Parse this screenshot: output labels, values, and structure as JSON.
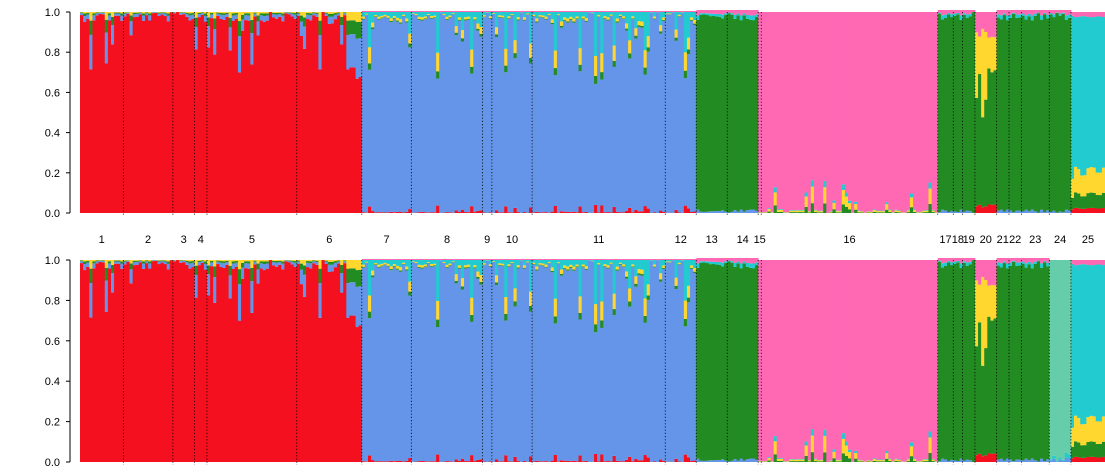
{
  "colors": {
    "red": "#f51020",
    "blue": "#6495e8",
    "pink": "#ff69b4",
    "green": "#228b22",
    "yellow": "#ffd72e",
    "cyan": "#22cbd0",
    "teal": "#66cdaa"
  },
  "chart_data": [
    {
      "type": "stacked-bar",
      "ylim": [
        0,
        1
      ],
      "yticks": [
        "0.0",
        "0.2",
        "0.4",
        "0.6",
        "0.8",
        "1.0"
      ],
      "grid": false,
      "populations": [
        {
          "label": "1",
          "n": 14,
          "main": "red"
        },
        {
          "label": "2",
          "n": 16,
          "main": "red"
        },
        {
          "label": "3",
          "n": 7,
          "main": "red"
        },
        {
          "label": "4",
          "n": 4,
          "main": "red"
        },
        {
          "label": "5",
          "n": 29,
          "main": "red"
        },
        {
          "label": "6",
          "n": 21,
          "main": "red"
        },
        {
          "label": "7",
          "n": 16,
          "main": "blue"
        },
        {
          "label": "8",
          "n": 23,
          "main": "blue"
        },
        {
          "label": "9",
          "n": 3,
          "main": "blue"
        },
        {
          "label": "10",
          "n": 13,
          "main": "blue"
        },
        {
          "label": "11",
          "n": 43,
          "main": "blue"
        },
        {
          "label": "12",
          "n": 10,
          "main": "blue"
        },
        {
          "label": "13",
          "n": 10,
          "main": "green"
        },
        {
          "label": "14",
          "n": 10,
          "main": "green"
        },
        {
          "label": "15",
          "n": 1,
          "main": "pink"
        },
        {
          "label": "16",
          "n": 57,
          "main": "pink"
        },
        {
          "label": "17",
          "n": 5,
          "main": "green"
        },
        {
          "label": "18",
          "n": 3,
          "main": "green"
        },
        {
          "label": "19",
          "n": 4,
          "main": "green"
        },
        {
          "label": "20",
          "n": 7,
          "main": "yellow"
        },
        {
          "label": "21",
          "n": 4,
          "main": "green"
        },
        {
          "label": "22",
          "n": 4,
          "main": "green"
        },
        {
          "label": "23",
          "n": 9,
          "main": "green"
        },
        {
          "label": "24",
          "n": 7,
          "main": "green"
        },
        {
          "label": "25",
          "n": 11,
          "main": "cyan"
        }
      ]
    },
    {
      "type": "stacked-bar",
      "ylim": [
        0,
        1
      ],
      "yticks": [
        "0.0",
        "0.2",
        "0.4",
        "0.6",
        "0.8",
        "1.0"
      ],
      "grid": false,
      "populations": [
        {
          "label": "1",
          "n": 14,
          "main": "red"
        },
        {
          "label": "2",
          "n": 16,
          "main": "red"
        },
        {
          "label": "3",
          "n": 7,
          "main": "red"
        },
        {
          "label": "4",
          "n": 4,
          "main": "red"
        },
        {
          "label": "5",
          "n": 29,
          "main": "red"
        },
        {
          "label": "6",
          "n": 21,
          "main": "red"
        },
        {
          "label": "7",
          "n": 16,
          "main": "blue"
        },
        {
          "label": "8",
          "n": 23,
          "main": "blue"
        },
        {
          "label": "9",
          "n": 3,
          "main": "blue"
        },
        {
          "label": "10",
          "n": 13,
          "main": "blue"
        },
        {
          "label": "11",
          "n": 43,
          "main": "blue"
        },
        {
          "label": "12",
          "n": 10,
          "main": "blue"
        },
        {
          "label": "13",
          "n": 10,
          "main": "green"
        },
        {
          "label": "14",
          "n": 10,
          "main": "green"
        },
        {
          "label": "15",
          "n": 1,
          "main": "pink"
        },
        {
          "label": "16",
          "n": 57,
          "main": "pink"
        },
        {
          "label": "17",
          "n": 5,
          "main": "green"
        },
        {
          "label": "18",
          "n": 3,
          "main": "green"
        },
        {
          "label": "19",
          "n": 4,
          "main": "green"
        },
        {
          "label": "20",
          "n": 7,
          "main": "yellow"
        },
        {
          "label": "21",
          "n": 4,
          "main": "green"
        },
        {
          "label": "22",
          "n": 4,
          "main": "green"
        },
        {
          "label": "23",
          "n": 9,
          "main": "green"
        },
        {
          "label": "24",
          "n": 7,
          "main": "teal"
        },
        {
          "label": "25",
          "n": 11,
          "main": "cyan"
        }
      ]
    }
  ]
}
